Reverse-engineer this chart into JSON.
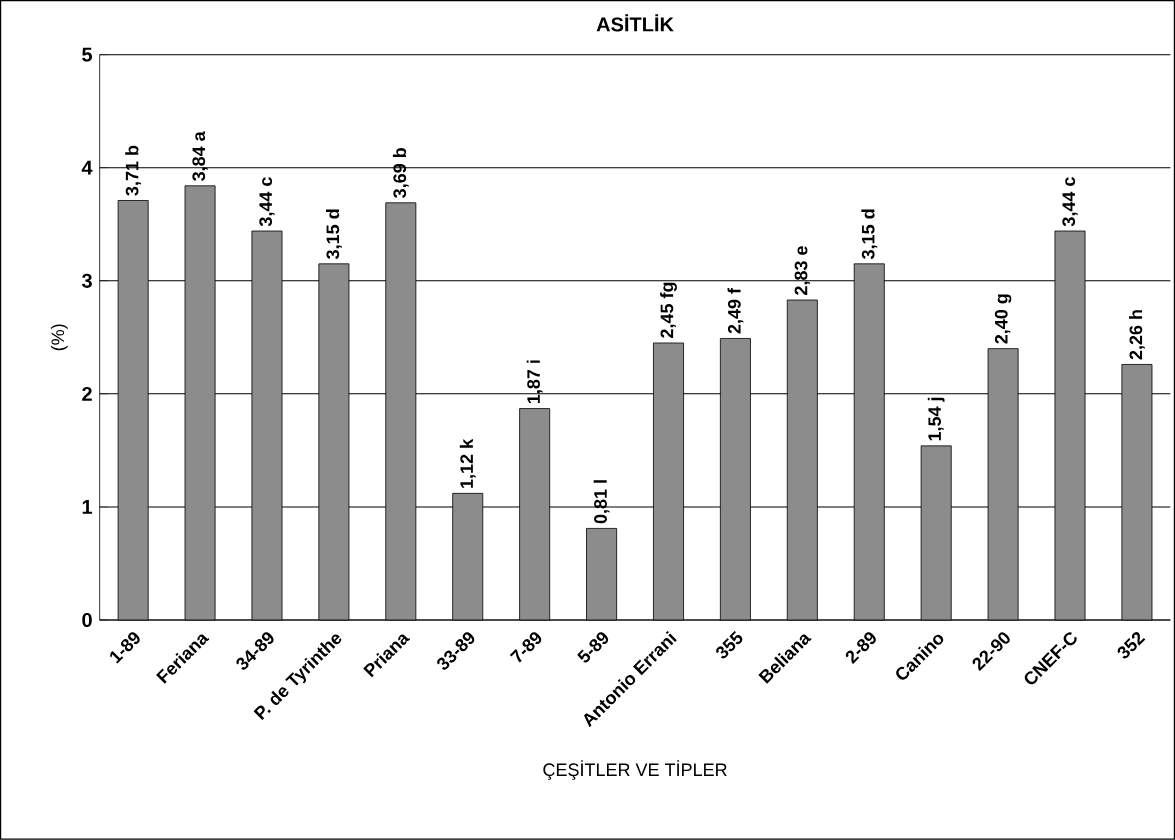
{
  "chart_data": {
    "type": "bar",
    "title": "ASİTLİK",
    "xlabel": "ÇEŞİTLER VE TİPLER",
    "ylabel": "(%)",
    "categories": [
      "1-89",
      "Feriana",
      "34-89",
      "P. de Tyrinthe",
      "Priana",
      "33-89",
      "7-89",
      "5-89",
      "Antonio Errani",
      "355",
      "Beliana",
      "2-89",
      "Canino",
      "22-90",
      "CNEF-C",
      "352"
    ],
    "values": [
      3.71,
      3.84,
      3.44,
      3.15,
      3.69,
      1.12,
      1.87,
      0.81,
      2.45,
      2.49,
      2.83,
      3.15,
      1.54,
      2.4,
      3.44,
      2.26
    ],
    "value_labels": [
      "3,71 b",
      "3,84 a",
      "3,44 c",
      "3,15 d",
      "3,69 b",
      "1,12 k",
      "1,87 i",
      "0,81 l",
      "2,45 fg",
      "2,49 f",
      "2,83 e",
      "3,15 d",
      "1,54 j",
      "2,40 g",
      "3,44 c",
      "2,26 h"
    ],
    "color": "#8c8c8c",
    "ylim": [
      0,
      5
    ],
    "yticks": [
      0,
      1,
      2,
      3,
      4,
      5
    ],
    "grid": "y"
  }
}
